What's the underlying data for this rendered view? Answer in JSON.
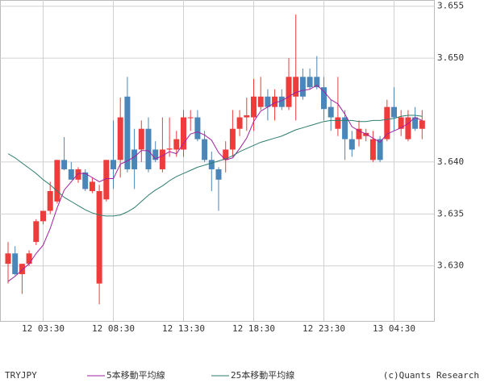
{
  "chart_data": {
    "type": "candlestick",
    "title": "TRYJPY",
    "source": "(c)Quants Research",
    "categories": [
      null,
      null,
      null,
      null,
      null,
      "12 03:30",
      null,
      null,
      null,
      null,
      null,
      null,
      null,
      null,
      null,
      "12 08:30",
      null,
      null,
      null,
      null,
      null,
      null,
      null,
      null,
      null,
      "12 13:30",
      null,
      null,
      null,
      null,
      null,
      null,
      null,
      null,
      null,
      "12 18:30",
      null,
      null,
      null,
      null,
      null,
      null,
      null,
      null,
      null,
      "12 23:30",
      null,
      null,
      null,
      null,
      null,
      null,
      null,
      null,
      null,
      "13 04:30",
      null,
      null,
      null,
      null
    ],
    "candles": {
      "open": [
        3.6302,
        3.6312,
        3.6292,
        3.6302,
        3.6323,
        3.6343,
        3.6353,
        3.6362,
        3.6402,
        3.6393,
        3.6383,
        3.639,
        3.6372,
        3.6283,
        3.6364,
        3.6402,
        3.6402,
        3.6463,
        3.6412,
        3.6412,
        3.6432,
        3.6412,
        3.6393,
        3.6412,
        3.6412,
        3.6412,
        3.6443,
        3.6443,
        3.6422,
        3.6402,
        3.6393,
        3.6402,
        3.6412,
        3.6432,
        3.6443,
        3.6443,
        3.6453,
        3.6463,
        3.6453,
        3.6463,
        3.6453,
        3.6463,
        3.6482,
        3.6482,
        3.6482,
        3.6472,
        3.6453,
        3.6432,
        3.6443,
        3.6422,
        3.6422,
        3.6425,
        3.6402,
        3.6422,
        3.6422,
        3.6453,
        3.6432,
        3.6422,
        3.6443,
        3.6432
      ],
      "high": [
        3.6323,
        3.6319,
        3.6302,
        3.6315,
        3.6345,
        3.6353,
        3.6381,
        3.6402,
        3.6424,
        3.64,
        3.6395,
        3.6393,
        3.6385,
        3.6378,
        3.6402,
        3.644,
        3.6462,
        3.6482,
        3.6432,
        3.644,
        3.6443,
        3.642,
        3.6443,
        3.6443,
        3.643,
        3.645,
        3.645,
        3.645,
        3.643,
        3.641,
        3.6395,
        3.642,
        3.645,
        3.645,
        3.6462,
        3.648,
        3.6482,
        3.647,
        3.647,
        3.647,
        3.65,
        3.6542,
        3.649,
        3.649,
        3.6502,
        3.6482,
        3.646,
        3.6482,
        3.645,
        3.643,
        3.644,
        3.6432,
        3.643,
        3.6425,
        3.646,
        3.6472,
        3.645,
        3.645,
        3.6453,
        3.645
      ],
      "low": [
        3.6283,
        3.6291,
        3.6273,
        3.63,
        3.632,
        3.634,
        3.635,
        3.636,
        3.6392,
        3.6383,
        3.638,
        3.6372,
        3.637,
        3.6263,
        3.6362,
        3.6374,
        3.6385,
        3.639,
        3.6374,
        3.64,
        3.639,
        3.64,
        3.639,
        3.6405,
        3.6405,
        3.6405,
        3.643,
        3.642,
        3.64,
        3.6372,
        3.6353,
        3.639,
        3.6405,
        3.6425,
        3.643,
        3.643,
        3.645,
        3.644,
        3.644,
        3.645,
        3.645,
        3.644,
        3.646,
        3.647,
        3.647,
        3.644,
        3.643,
        3.6425,
        3.6402,
        3.6405,
        3.6415,
        3.642,
        3.64,
        3.64,
        3.642,
        3.643,
        3.6425,
        3.642,
        3.643,
        3.6422
      ],
      "close": [
        3.6312,
        3.6292,
        3.6302,
        3.6312,
        3.6343,
        3.6353,
        3.6372,
        3.6402,
        3.6393,
        3.6383,
        3.6393,
        3.6374,
        3.6381,
        3.6372,
        3.6402,
        3.6393,
        3.6443,
        3.6393,
        3.6393,
        3.6432,
        3.6393,
        3.6402,
        3.6412,
        3.6413,
        3.6422,
        3.6443,
        3.6443,
        3.6422,
        3.6402,
        3.6393,
        3.6383,
        3.6412,
        3.6432,
        3.6443,
        3.6445,
        3.6463,
        3.6463,
        3.6453,
        3.6463,
        3.6453,
        3.6482,
        3.6482,
        3.6463,
        3.6472,
        3.6472,
        3.6451,
        3.6443,
        3.6443,
        3.6422,
        3.6412,
        3.6432,
        3.6428,
        3.6422,
        3.6402,
        3.6453,
        3.6443,
        3.6443,
        3.6443,
        3.6432,
        3.644
      ],
      "up_color": "#ee3b3b",
      "down_color": "#4a86b8"
    },
    "series": [
      {
        "name": "5本移動平均線",
        "color": "#a020a0",
        "values": [
          3.6285,
          3.629,
          3.6296,
          3.6302,
          3.6312,
          3.632,
          3.6336,
          3.6356,
          3.6373,
          3.6381,
          3.6389,
          3.6389,
          3.6385,
          3.6381,
          3.6384,
          3.6384,
          3.6398,
          3.6401,
          3.6405,
          3.6411,
          3.6411,
          3.6403,
          3.6406,
          3.641,
          3.6408,
          3.6418,
          3.6427,
          3.6429,
          3.6426,
          3.6421,
          3.6409,
          3.6402,
          3.6404,
          3.6413,
          3.6423,
          3.6439,
          3.6449,
          3.6453,
          3.6457,
          3.6459,
          3.6463,
          3.6467,
          3.6469,
          3.647,
          3.6474,
          3.6468,
          3.646,
          3.6456,
          3.6446,
          3.6434,
          3.643,
          3.6427,
          3.6423,
          3.6419,
          3.6427,
          3.643,
          3.6433,
          3.6437,
          3.6443,
          3.644
        ]
      },
      {
        "name": "25本移動平均線",
        "color": "#2e7d6e",
        "values": [
          3.6408,
          3.6404,
          3.6399,
          3.6394,
          3.6389,
          3.6383,
          3.6378,
          3.6372,
          3.6366,
          3.6362,
          3.6358,
          3.6354,
          3.6351,
          3.6349,
          3.6348,
          3.6348,
          3.6349,
          3.6352,
          3.6356,
          3.6362,
          3.6368,
          3.6373,
          3.6377,
          3.6382,
          3.6386,
          3.6389,
          3.6392,
          3.6395,
          3.6397,
          3.6399,
          3.6401,
          3.6403,
          3.6406,
          3.641,
          3.6413,
          3.6416,
          3.6419,
          3.6421,
          3.6423,
          3.6425,
          3.6428,
          3.6431,
          3.6433,
          3.6435,
          3.6437,
          3.6439,
          3.644,
          3.644,
          3.644,
          3.644,
          3.6439,
          3.6439,
          3.644,
          3.644,
          3.6441,
          3.6442,
          3.6444,
          3.6445,
          3.6445,
          3.6444
        ]
      }
    ],
    "ylim": [
      3.6247,
      3.6556
    ],
    "yticks": [
      3.655,
      {
        "value": 3.65,
        "label": "3.650"
      },
      {
        "value": 3.64,
        "label": "3.640"
      },
      3.635,
      {
        "value": 3.63,
        "label": "3.630"
      }
    ],
    "grid": true
  }
}
